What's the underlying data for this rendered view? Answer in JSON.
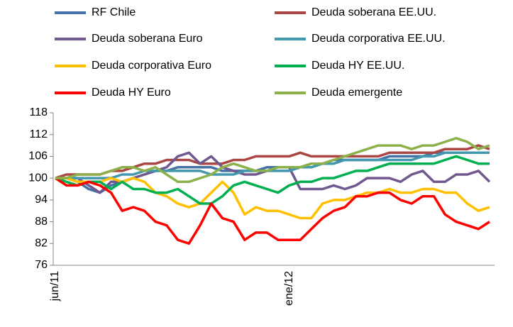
{
  "chart_data": {
    "type": "line",
    "categories": [
      "jun/11",
      null,
      null,
      null,
      null,
      null,
      null,
      null,
      null,
      null,
      null,
      null,
      null,
      null,
      null,
      null,
      null,
      null,
      null,
      null,
      null,
      "ene/12",
      null,
      null,
      null,
      null,
      null,
      null,
      null,
      null,
      null,
      null,
      null,
      null,
      null,
      null,
      null,
      null,
      null,
      null
    ],
    "ylim": [
      76,
      118
    ],
    "yticks": [
      76,
      82,
      88,
      94,
      100,
      106,
      112,
      118
    ],
    "series": [
      {
        "name": "RF Chile",
        "color": "#4572a7",
        "values": [
          100,
          100,
          99,
          97,
          96,
          98,
          99,
          100,
          101,
          102,
          102,
          103,
          103,
          103,
          103,
          102,
          102,
          102,
          102,
          103,
          103,
          103,
          103,
          104,
          104,
          105,
          105,
          105,
          105,
          105,
          106,
          106,
          106,
          106,
          107,
          107,
          107,
          107,
          107,
          107
        ]
      },
      {
        "name": "Deuda soberana EE.UU.",
        "color": "#aa4643",
        "values": [
          100,
          101,
          101,
          101,
          101,
          102,
          102,
          103,
          104,
          104,
          105,
          105,
          105,
          104,
          104,
          104,
          105,
          105,
          106,
          106,
          106,
          106,
          107,
          106,
          106,
          106,
          106,
          106,
          106,
          106,
          107,
          107,
          107,
          107,
          107,
          108,
          108,
          108,
          109,
          108
        ]
      },
      {
        "name": "Deuda soberana Euro",
        "color": "#71588f",
        "values": [
          100,
          100,
          100,
          98,
          96,
          99,
          99,
          100,
          101,
          102,
          103,
          106,
          107,
          104,
          106,
          103,
          102,
          101,
          101,
          102,
          103,
          103,
          97,
          97,
          97,
          98,
          97,
          98,
          100,
          100,
          100,
          99,
          101,
          102,
          99,
          99,
          101,
          101,
          102,
          99
        ]
      },
      {
        "name": "Deuda corporativa  EE.UU.",
        "color": "#4198af",
        "values": [
          100,
          100,
          100,
          100,
          100,
          100,
          101,
          101,
          102,
          102,
          102,
          102,
          102,
          102,
          101,
          101,
          101,
          102,
          102,
          102,
          102,
          102,
          103,
          103,
          104,
          104,
          105,
          105,
          105,
          105,
          105,
          105,
          105,
          106,
          106,
          107,
          107,
          107,
          107,
          107
        ]
      },
      {
        "name": "Deuda corporativa Euro",
        "color": "#ffc000",
        "values": [
          100,
          100,
          99,
          99,
          99,
          100,
          99,
          100,
          99,
          96,
          95,
          93,
          92,
          93,
          96,
          99,
          96,
          90,
          92,
          91,
          91,
          90,
          89,
          89,
          93,
          94,
          94,
          95,
          96,
          96,
          97,
          96,
          96,
          97,
          97,
          96,
          96,
          93,
          91,
          92
        ]
      },
      {
        "name": "Deuda HY EE.UU.",
        "color": "#00b050",
        "values": [
          100,
          99,
          98,
          99,
          99,
          97,
          99,
          97,
          97,
          96,
          96,
          97,
          95,
          93,
          93,
          95,
          98,
          99,
          98,
          97,
          96,
          98,
          99,
          99,
          100,
          100,
          101,
          102,
          102,
          103,
          104,
          104,
          104,
          104,
          104,
          105,
          106,
          105,
          104,
          104
        ]
      },
      {
        "name": "Deuda HY Euro",
        "color": "#ff0000",
        "values": [
          100,
          98,
          98,
          99,
          98,
          96,
          91,
          92,
          91,
          88,
          87,
          83,
          82,
          87,
          93,
          89,
          88,
          83,
          85,
          85,
          83,
          83,
          83,
          86,
          89,
          91,
          92,
          95,
          95,
          96,
          96,
          94,
          93,
          95,
          95,
          90,
          88,
          87,
          86,
          88
        ]
      },
      {
        "name": "Deuda emergente",
        "color": "#8db14a",
        "values": [
          100,
          100,
          101,
          101,
          101,
          102,
          103,
          103,
          102,
          103,
          101,
          99,
          99,
          100,
          101,
          103,
          104,
          103,
          102,
          102,
          103,
          103,
          103,
          104,
          104,
          105,
          106,
          107,
          108,
          109,
          109,
          109,
          108,
          109,
          109,
          110,
          111,
          110,
          108,
          109
        ]
      }
    ]
  }
}
